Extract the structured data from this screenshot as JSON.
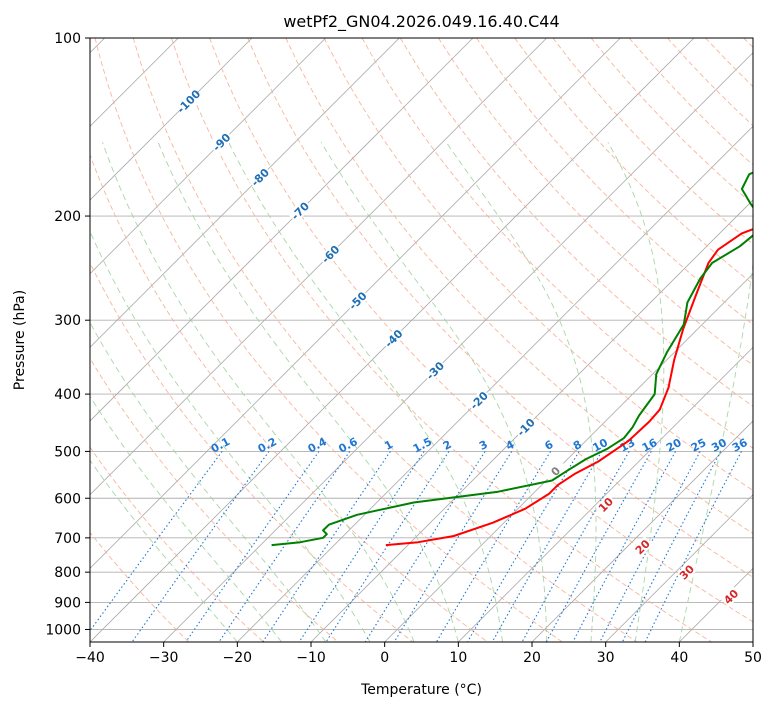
{
  "chart_data": {
    "type": "line",
    "title": "wetPf2_GN04.2026.049.16.40.C44",
    "xlabel": "Temperature (°C)",
    "ylabel": "Pressure (hPa)",
    "xlim": [
      -40,
      50
    ],
    "ylim": [
      1050,
      100
    ],
    "x_ticks": [
      "−40",
      "−30",
      "−20",
      "−10",
      "0",
      "10",
      "20",
      "30",
      "40",
      "50"
    ],
    "y_ticks": [
      "100",
      "200",
      "300",
      "400",
      "500",
      "600",
      "700",
      "800",
      "900",
      "1000"
    ],
    "skew": "skew-T log-p",
    "colors": {
      "temperature": "#ff0000",
      "dewpoint": "#008000",
      "isotherm": "#a9a9a9",
      "dry_adiabat": "#f7a88c",
      "moist_adiabat": "#9fd29f",
      "mixing_ratio": "#1f77d4",
      "isotherm_label": "#1f6fb4",
      "dry_adiabat_label": "#d62728",
      "grid": "#b0b0b0"
    },
    "series": [
      {
        "name": "Temperature",
        "points": [
          [
            -13,
            720
          ],
          [
            -9,
            712
          ],
          [
            -5,
            695
          ],
          [
            -1.5,
            660
          ],
          [
            1,
            625
          ],
          [
            2.2,
            590
          ],
          [
            2.2,
            570
          ],
          [
            3,
            545
          ],
          [
            4.5,
            520
          ],
          [
            5.8,
            480
          ],
          [
            6,
            445
          ],
          [
            5.8,
            425
          ],
          [
            4,
            390
          ],
          [
            1,
            350
          ],
          [
            -2,
            310
          ],
          [
            -5,
            270
          ],
          [
            -7.5,
            240
          ],
          [
            -8,
            228
          ],
          [
            -7,
            214
          ],
          [
            -3,
            200
          ],
          [
            3,
            185
          ],
          [
            10,
            170
          ],
          [
            15,
            158
          ],
          [
            19,
            143
          ],
          [
            25,
            125
          ],
          [
            31,
            110
          ],
          [
            36,
            100
          ]
        ]
      },
      {
        "name": "Dewpoint",
        "points": [
          [
            -28.5,
            720
          ],
          [
            -25,
            712
          ],
          [
            -22.5,
            700
          ],
          [
            -22.5,
            690
          ],
          [
            -23.5,
            680
          ],
          [
            -23.5,
            665
          ],
          [
            -21,
            640
          ],
          [
            -15,
            610
          ],
          [
            -5,
            585
          ],
          [
            0.8,
            560
          ],
          [
            1.5,
            540
          ],
          [
            2.5,
            515
          ],
          [
            4,
            495
          ],
          [
            4.8,
            475
          ],
          [
            4.5,
            455
          ],
          [
            3.8,
            435
          ],
          [
            3,
            400
          ],
          [
            0.5,
            370
          ],
          [
            -1,
            340
          ],
          [
            -2.5,
            305
          ],
          [
            -5,
            280
          ],
          [
            -6.5,
            255
          ],
          [
            -7,
            240
          ],
          [
            -5.5,
            225
          ],
          [
            -5,
            210
          ],
          [
            -7,
            200
          ],
          [
            -10,
            190
          ],
          [
            -13,
            180
          ],
          [
            -14,
            170
          ],
          [
            -11,
            158
          ],
          [
            -7,
            140
          ],
          [
            -3,
            123
          ],
          [
            3,
            103
          ],
          [
            4,
            100
          ]
        ]
      }
    ],
    "isotherm_labels": [
      "-100",
      "-90",
      "-80",
      "-70",
      "-60",
      "-50",
      "-40",
      "-30",
      "-20",
      "-10",
      "0"
    ],
    "dry_adiabat_labels": [
      "10",
      "20",
      "30",
      "40"
    ],
    "mixing_ratio_labels": [
      "0.1",
      "0.2",
      "0.4",
      "0.6",
      "1",
      "1.5",
      "2",
      "3",
      "4",
      "6",
      "8",
      "10",
      "13",
      "16",
      "20",
      "25",
      "30",
      "36"
    ]
  }
}
